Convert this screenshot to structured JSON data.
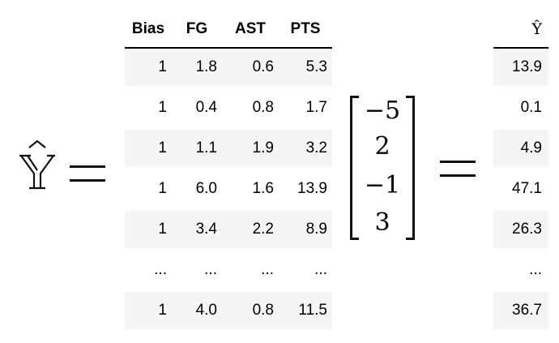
{
  "lhs_symbol": "Ŷ",
  "equals": "=",
  "table": {
    "columns": [
      "Bias",
      "FG",
      "AST",
      "PTS"
    ],
    "rows": [
      [
        "1",
        "1.8",
        "0.6",
        "5.3"
      ],
      [
        "1",
        "0.4",
        "0.8",
        "1.7"
      ],
      [
        "1",
        "1.1",
        "1.9",
        "3.2"
      ],
      [
        "1",
        "6.0",
        "1.6",
        "13.9"
      ],
      [
        "1",
        "3.4",
        "2.2",
        "8.9"
      ],
      [
        "...",
        "...",
        "...",
        "..."
      ],
      [
        "1",
        "4.0",
        "0.8",
        "11.5"
      ]
    ]
  },
  "weights": [
    "−5",
    "2",
    "−1",
    "3"
  ],
  "output": {
    "header": "Ŷ",
    "values": [
      "13.9",
      "0.1",
      "4.9",
      "47.1",
      "26.3",
      "...",
      "36.7"
    ]
  }
}
